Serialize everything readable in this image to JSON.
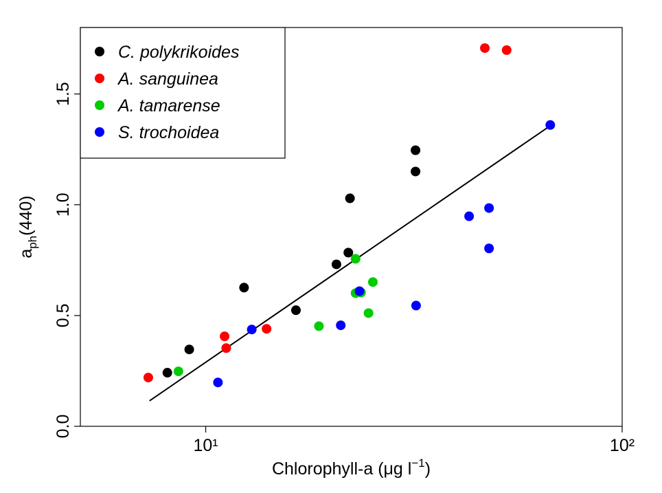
{
  "chart_data": {
    "type": "scatter",
    "xlog": true,
    "xlim": [
      5,
      100
    ],
    "ylim": [
      0,
      1.8
    ],
    "xticks": [
      {
        "value": 10,
        "label": "10¹"
      },
      {
        "value": 100,
        "label": "10²"
      }
    ],
    "yticks": [
      {
        "value": 0,
        "label": "0.0"
      },
      0.5,
      {
        "value": 1,
        "label": "1.0"
      },
      1.5
    ],
    "xlabel_parts": [
      "Chlorophyll-a  (μg l",
      "−1",
      ")"
    ],
    "ylabel_parts": [
      "a",
      "ph",
      "(440)"
    ],
    "legend": "top-left",
    "series": [
      {
        "name": "C. polykrikoides",
        "color": "#000000",
        "x": [
          8.09,
          9.13,
          12.36,
          16.47,
          20.6,
          22.0,
          22.2,
          31.9,
          31.9
        ],
        "values": [
          0.242,
          0.347,
          0.626,
          0.524,
          0.731,
          0.784,
          1.029,
          1.15,
          1.246
        ]
      },
      {
        "name": "A. sanguinea",
        "color": "#ff0000",
        "x": [
          7.28,
          11.1,
          11.2,
          14.0,
          46.8,
          52.8
        ],
        "values": [
          0.22,
          0.406,
          0.353,
          0.44,
          1.707,
          1.698
        ]
      },
      {
        "name": "A. tamarense",
        "color": "#00cd00",
        "x": [
          8.6,
          18.7,
          22.9,
          22.9,
          23.6,
          24.6,
          25.2
        ],
        "values": [
          0.248,
          0.452,
          0.756,
          0.601,
          0.604,
          0.511,
          0.651
        ]
      },
      {
        "name": "S. trochoidea",
        "color": "#0000ff",
        "x": [
          10.7,
          12.9,
          21.1,
          23.4,
          32.0,
          42.9,
          47.9,
          47.9,
          67.2
        ],
        "values": [
          0.198,
          0.437,
          0.456,
          0.61,
          0.545,
          0.948,
          0.985,
          0.803,
          1.36
        ]
      }
    ],
    "fit": {
      "color": "#000000",
      "x": [
        7.33,
        67.0
      ],
      "y": [
        0.115,
        1.355
      ]
    }
  }
}
